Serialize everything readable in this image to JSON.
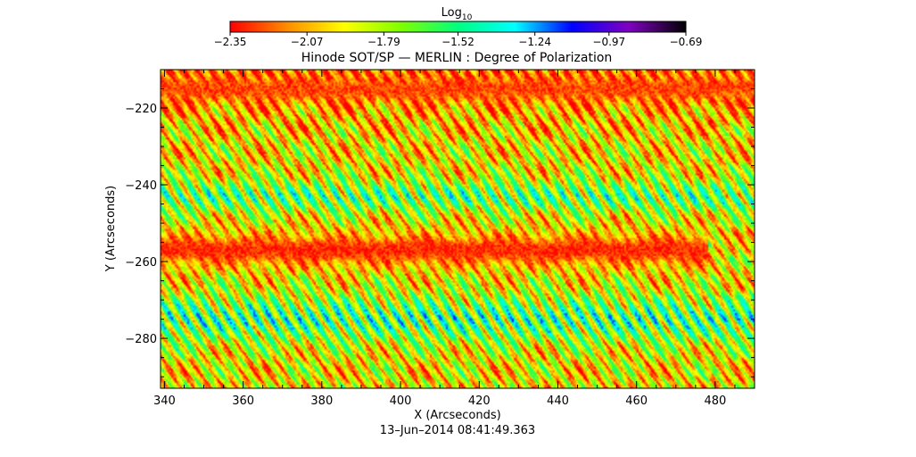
{
  "chart_data": {
    "type": "heatmap",
    "title": "Hinode SOT/SP — MERLIN : Degree of Polarization",
    "xlabel": "X (Arcseconds)",
    "ylabel": "Y (Arcseconds)",
    "timestamp": "13–Jun–2014 08:41:49.363",
    "xlim": [
      339,
      490
    ],
    "ylim": [
      -293,
      -210
    ],
    "xticks": [
      {
        "value": 340,
        "label": "340"
      },
      {
        "value": 360,
        "label": "360"
      },
      {
        "value": 380,
        "label": "380"
      },
      {
        "value": 400,
        "label": "400"
      },
      {
        "value": 420,
        "label": "420"
      },
      {
        "value": 440,
        "label": "440"
      },
      {
        "value": 460,
        "label": "460"
      },
      {
        "value": 480,
        "label": "480"
      }
    ],
    "yticks": [
      {
        "value": -220,
        "label": "−220"
      },
      {
        "value": -240,
        "label": "−240"
      },
      {
        "value": -260,
        "label": "−260"
      },
      {
        "value": -280,
        "label": "−280"
      }
    ],
    "colorbar": {
      "title_base": "Log",
      "title_sub": "10",
      "range": [
        -2.35,
        -0.69
      ],
      "ticks": [
        {
          "value": -2.35,
          "label": "−2.35"
        },
        {
          "value": -2.07,
          "label": "−2.07"
        },
        {
          "value": -1.79,
          "label": "−1.79"
        },
        {
          "value": -1.52,
          "label": "−1.52"
        },
        {
          "value": -1.24,
          "label": "−1.24"
        },
        {
          "value": -0.97,
          "label": "−0.97"
        },
        {
          "value": -0.69,
          "label": "−0.69"
        }
      ],
      "colormap": [
        "#ff0000",
        "#ff8c00",
        "#ffff00",
        "#7fff00",
        "#00ff80",
        "#00ffff",
        "#0000ff",
        "#8000c0",
        "#000000"
      ]
    },
    "field_features": {
      "scan_stripe_spacing_arcsec": 3.6,
      "strong_bands": [
        {
          "y_center": -257,
          "width": 5,
          "level": -2.3,
          "x_max": 478
        },
        {
          "y_center": -215,
          "width": 4,
          "level": -2.25
        }
      ],
      "weak_bands": [
        {
          "y_center": -243,
          "width": 4,
          "level": -1.42
        },
        {
          "y_center": -275,
          "width": 6,
          "level": -1.35
        }
      ],
      "seam_x": 478
    }
  }
}
